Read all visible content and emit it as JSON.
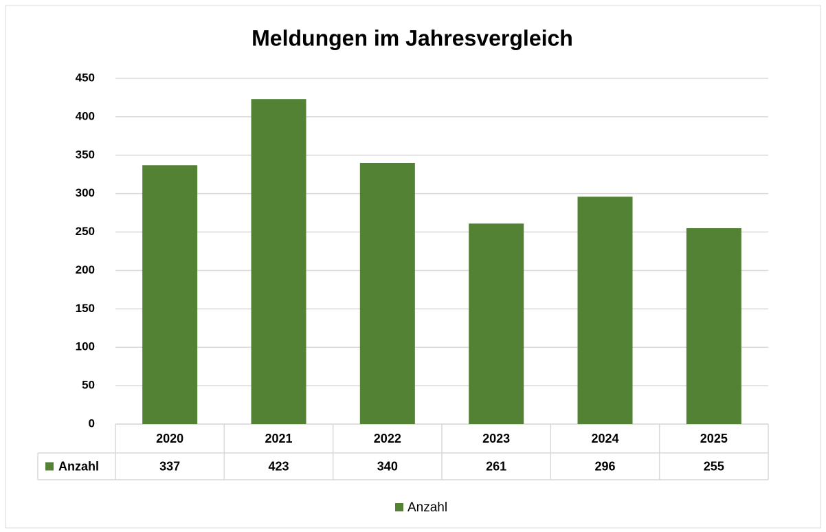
{
  "chart_data": {
    "type": "bar",
    "title": "Meldungen im Jahresvergleich",
    "categories": [
      "2020",
      "2021",
      "2022",
      "2023",
      "2024",
      "2025"
    ],
    "series": [
      {
        "name": "Anzahl",
        "color": "#548235",
        "values": [
          337,
          423,
          340,
          261,
          296,
          255
        ]
      }
    ],
    "ylim": [
      0,
      450
    ],
    "yticks": [
      0,
      50,
      100,
      150,
      200,
      250,
      300,
      350,
      400,
      450
    ],
    "grid": true
  }
}
